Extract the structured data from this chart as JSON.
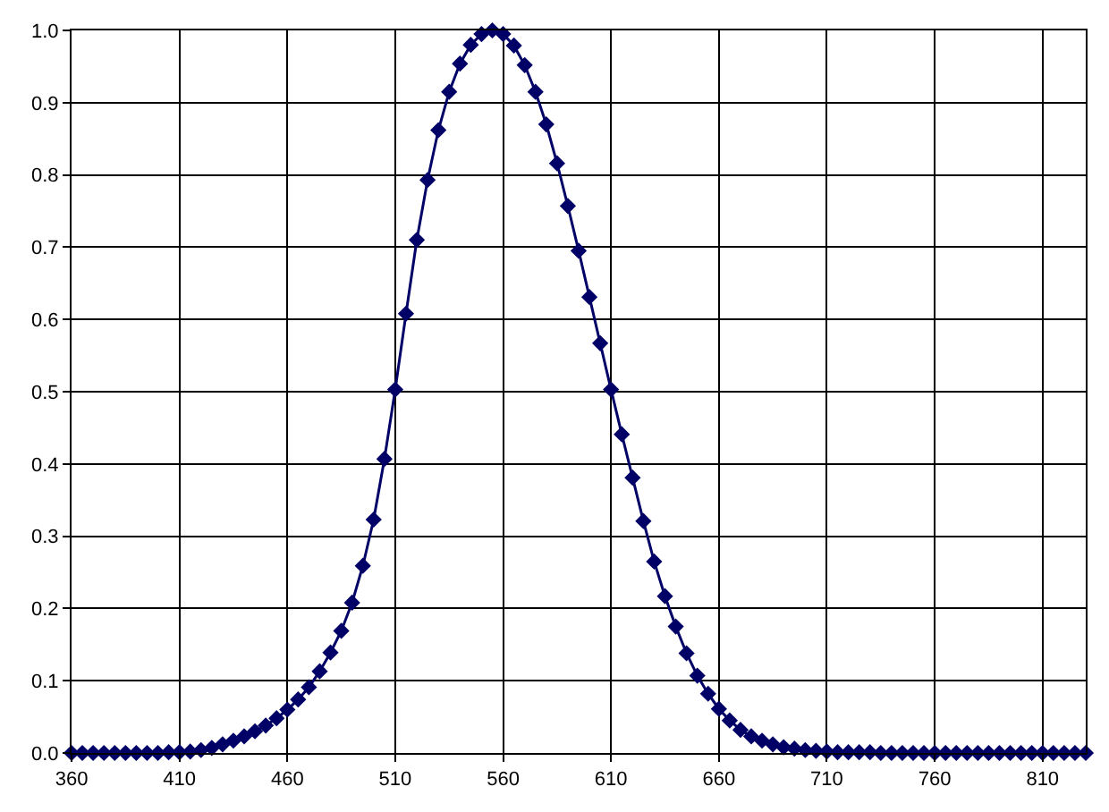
{
  "chart_data": {
    "type": "line",
    "x": [
      360,
      365,
      370,
      375,
      380,
      385,
      390,
      395,
      400,
      405,
      410,
      415,
      420,
      425,
      430,
      435,
      440,
      445,
      450,
      455,
      460,
      465,
      470,
      475,
      480,
      485,
      490,
      495,
      500,
      505,
      510,
      515,
      520,
      525,
      530,
      535,
      540,
      545,
      550,
      555,
      560,
      565,
      570,
      575,
      580,
      585,
      590,
      595,
      600,
      605,
      610,
      615,
      620,
      625,
      630,
      635,
      640,
      645,
      650,
      655,
      660,
      665,
      670,
      675,
      680,
      685,
      690,
      695,
      700,
      705,
      710,
      715,
      720,
      725,
      730,
      735,
      740,
      745,
      750,
      755,
      760,
      765,
      770,
      775,
      780,
      785,
      790,
      795,
      800,
      805,
      810,
      815,
      820,
      825,
      830
    ],
    "series": [
      {
        "color": "#000066",
        "values": [
          0,
          0,
          0,
          0,
          0,
          0,
          0,
          0,
          0,
          0.001,
          0.001,
          0.002,
          0.004,
          0.007,
          0.012,
          0.017,
          0.023,
          0.03,
          0.038,
          0.048,
          0.06,
          0.074,
          0.091,
          0.113,
          0.139,
          0.169,
          0.208,
          0.259,
          0.323,
          0.407,
          0.503,
          0.608,
          0.71,
          0.793,
          0.862,
          0.915,
          0.954,
          0.98,
          0.995,
          1.0,
          0.995,
          0.979,
          0.952,
          0.915,
          0.87,
          0.816,
          0.757,
          0.695,
          0.631,
          0.567,
          0.503,
          0.441,
          0.381,
          0.321,
          0.265,
          0.217,
          0.175,
          0.138,
          0.107,
          0.082,
          0.061,
          0.045,
          0.032,
          0.023,
          0.017,
          0.012,
          0.008,
          0.006,
          0.004,
          0.003,
          0.002,
          0.001,
          0.001,
          0.001,
          0.001,
          0,
          0,
          0,
          0,
          0,
          0,
          0,
          0,
          0,
          0,
          0,
          0,
          0,
          0,
          0,
          0,
          0,
          0,
          0,
          0
        ]
      }
    ],
    "xlim": [
      360,
      830
    ],
    "xticks": [
      360,
      410,
      460,
      510,
      560,
      610,
      660,
      710,
      760,
      810
    ],
    "ylim": [
      0,
      1
    ],
    "yticks": [
      {
        "value": 0,
        "label": "0.0"
      },
      {
        "value": 0.1,
        "label": "0.1"
      },
      {
        "value": 0.2,
        "label": "0.2"
      },
      {
        "value": 0.3,
        "label": "0.3"
      },
      {
        "value": 0.4,
        "label": "0.4"
      },
      {
        "value": 0.5,
        "label": "0.5"
      },
      {
        "value": 0.6,
        "label": "0.6"
      },
      {
        "value": 0.7,
        "label": "0.7"
      },
      {
        "value": 0.8,
        "label": "0.8"
      },
      {
        "value": 0.9,
        "label": "0.9"
      },
      {
        "value": 1,
        "label": "1.0"
      }
    ],
    "grid": true,
    "marker": "diamond",
    "line_style": "solid"
  }
}
